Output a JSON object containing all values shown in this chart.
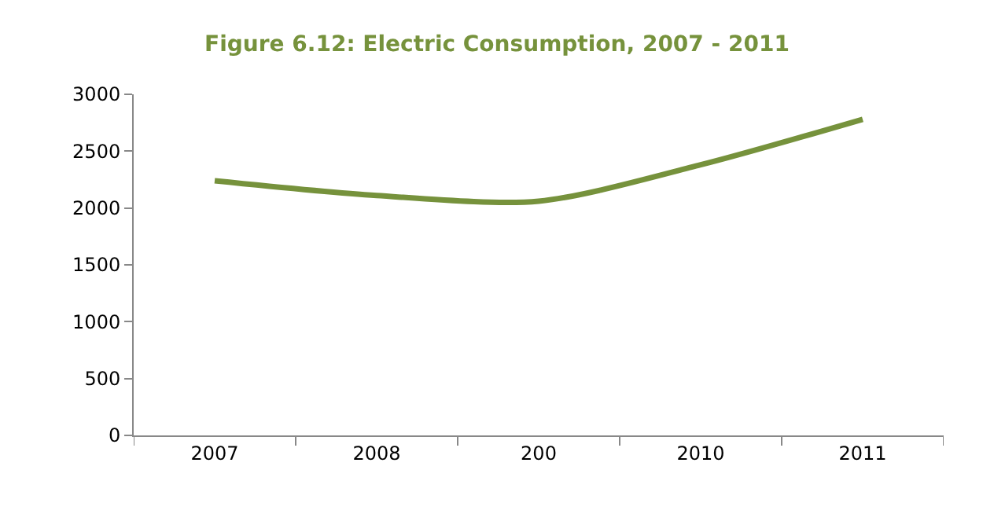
{
  "chart_data": {
    "type": "line",
    "title": "Figure 6.12: Electric Consumption, 2007 - 2011",
    "categories": [
      "2007",
      "2008",
      "200",
      "2010",
      "2011"
    ],
    "series": [
      {
        "color": "#76923c",
        "values": [
          2240,
          2110,
          2060,
          2380,
          2780
        ]
      }
    ],
    "ylim": [
      0,
      3000
    ],
    "yticks": [
      0,
      500,
      1000,
      1500,
      2000,
      2500,
      3000
    ],
    "marker": "none",
    "line_style": "solid"
  }
}
